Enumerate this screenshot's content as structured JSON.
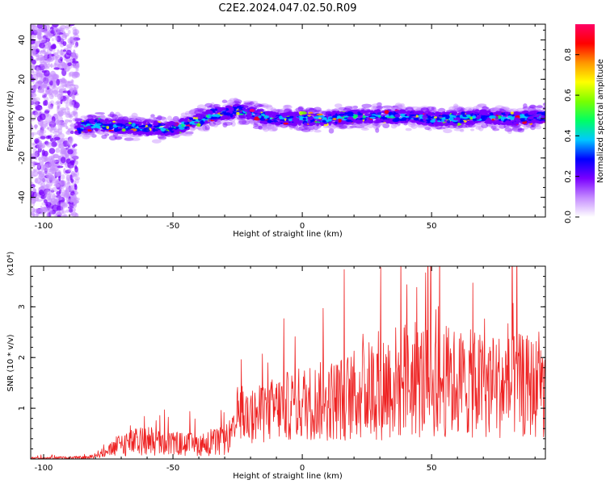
{
  "title": "C2E2.2024.047.02.50.R09",
  "chart_data": [
    {
      "type": "heatmap",
      "xlabel": "Height of straight line (km)",
      "ylabel": "Frequency (Hz)",
      "xlim": [
        -105,
        94
      ],
      "ylim": [
        -50,
        48
      ],
      "x_ticks": [
        -100,
        -50,
        0,
        50
      ],
      "x_tick_labels": [
        "-100",
        "-50",
        "0",
        "50"
      ],
      "y_ticks": [
        -40,
        -20,
        0,
        20,
        40
      ],
      "y_tick_labels": [
        "-40",
        "-20",
        "0",
        "20",
        "40"
      ],
      "colorbar": {
        "label": "Normalized spectral amplitude",
        "range": [
          0,
          0.95
        ],
        "ticks": [
          0.0,
          0.2,
          0.4,
          0.6,
          0.8
        ],
        "tick_labels": [
          "0.0",
          "0.2",
          "0.4",
          "0.6",
          "0.8"
        ],
        "colormap": [
          "#ffffff",
          "#c58cff",
          "#7a00ff",
          "#0000ff",
          "#00c8ff",
          "#00ff64",
          "#7aff00",
          "#ffff00",
          "#ff9600",
          "#ff0000",
          "#ff0064"
        ]
      },
      "band_center": {
        "x": [
          -87,
          -80,
          -70,
          -60,
          -50,
          -45,
          -40,
          -35,
          -30,
          -25,
          -20,
          -15,
          -10,
          -5,
          0,
          10,
          20,
          30,
          40,
          50,
          60,
          70,
          80,
          94
        ],
        "y": [
          -5,
          -3,
          -4,
          -5,
          -5,
          -3,
          -1,
          2,
          3,
          4,
          3,
          1,
          0,
          0,
          0,
          0,
          1,
          1,
          1,
          0,
          0,
          1,
          0,
          1
        ]
      },
      "noise_region_x": [
        -105,
        -87
      ]
    },
    {
      "type": "line",
      "xlabel": "Height of straight line (km)",
      "ylabel": "SNR (10 * v/v)",
      "y_multiplier": "(x10⁴)",
      "xlim": [
        -105,
        94
      ],
      "ylim": [
        0,
        3.8
      ],
      "x_ticks": [
        -100,
        -50,
        0,
        50
      ],
      "x_tick_labels": [
        "-100",
        "-50",
        "0",
        "50"
      ],
      "y_ticks": [
        1,
        2,
        3
      ],
      "y_tick_labels": [
        "1",
        "2",
        "3"
      ],
      "color": "#ee2222",
      "envelope": {
        "x": [
          -105,
          -82,
          -80,
          -75,
          -70,
          -60,
          -50,
          -40,
          -30,
          -26,
          -25,
          -22,
          -15,
          -10,
          -5,
          0,
          10,
          20,
          25,
          30,
          40,
          50,
          60,
          70,
          80,
          94
        ],
        "mean": [
          0.02,
          0.03,
          0.08,
          0.15,
          0.3,
          0.35,
          0.3,
          0.28,
          0.35,
          0.55,
          0.95,
          0.8,
          0.9,
          1.0,
          1.05,
          1.1,
          1.15,
          1.25,
          1.35,
          1.45,
          1.55,
          1.55,
          1.5,
          1.45,
          1.45,
          1.4
        ],
        "spread": [
          0.02,
          0.03,
          0.06,
          0.12,
          0.25,
          0.3,
          0.25,
          0.22,
          0.3,
          0.35,
          0.5,
          0.5,
          0.6,
          0.65,
          0.7,
          0.75,
          0.8,
          0.9,
          1.0,
          1.1,
          1.2,
          1.15,
          1.1,
          1.05,
          1.05,
          1.0
        ]
      }
    }
  ]
}
